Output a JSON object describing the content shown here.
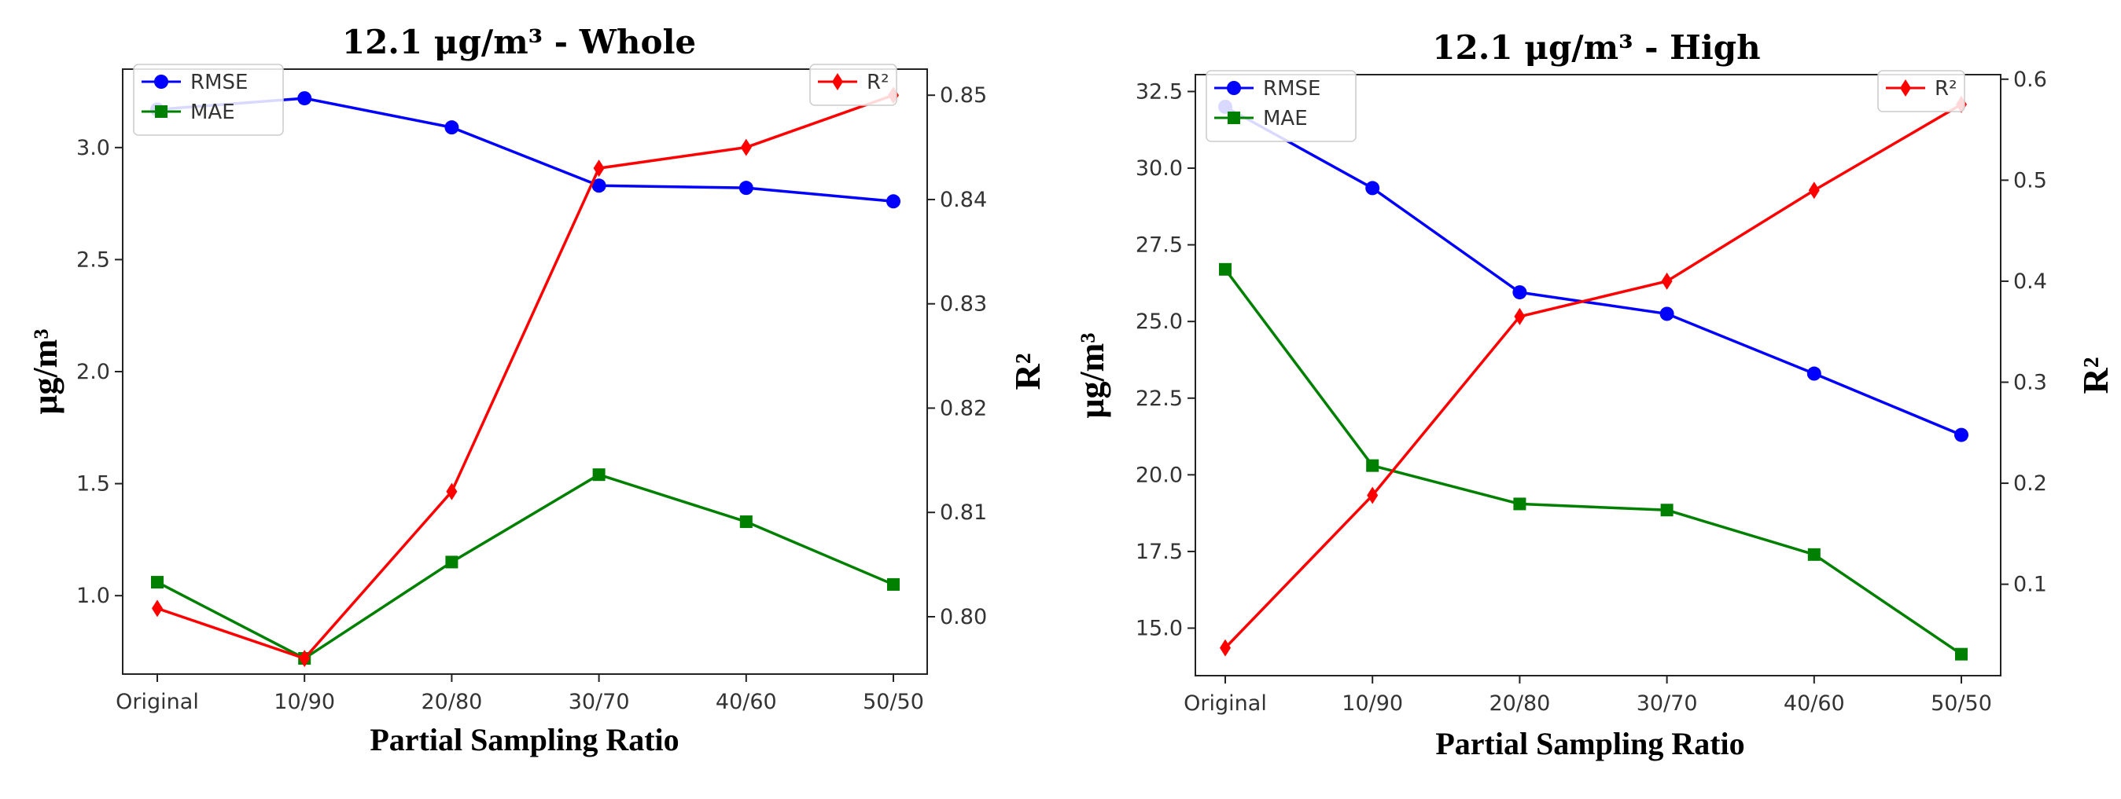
{
  "chart_data": [
    {
      "type": "line",
      "title": "12.1 μg/m³ - Whole",
      "xlabel": "Partial Sampling Ratio",
      "ylabel": "μg/m³",
      "y2label": "R²",
      "categories": [
        "Original",
        "10/90",
        "20/80",
        "30/70",
        "40/60",
        "50/50"
      ],
      "ylim": [
        0.65,
        3.35
      ],
      "y2lim": [
        0.7945,
        0.8525
      ],
      "yticks": [
        "1.0",
        "1.5",
        "2.0",
        "2.5",
        "3.0"
      ],
      "y2ticks": [
        "0.80",
        "0.81",
        "0.82",
        "0.83",
        "0.84",
        "0.85"
      ],
      "series": [
        {
          "name": "RMSE",
          "axis": "left",
          "color": "#0000ff",
          "marker": "circle",
          "values": [
            3.17,
            3.22,
            3.09,
            2.83,
            2.82,
            2.76
          ]
        },
        {
          "name": "MAE",
          "axis": "left",
          "color": "#008000",
          "marker": "square",
          "values": [
            1.06,
            0.72,
            1.15,
            1.54,
            1.33,
            1.05
          ]
        },
        {
          "name": "R²",
          "axis": "right",
          "color": "#ff0000",
          "marker": "diamond",
          "values": [
            0.8008,
            0.796,
            0.812,
            0.843,
            0.845,
            0.85
          ]
        }
      ],
      "legend_left": "top-left",
      "legend_right": "top-right",
      "grid": false
    },
    {
      "type": "line",
      "title": "12.1 μg/m³ - High",
      "xlabel": "Partial Sampling Ratio",
      "ylabel": "μg/m³",
      "y2label": "R²",
      "categories": [
        "Original",
        "10/90",
        "20/80",
        "30/70",
        "40/60",
        "50/50"
      ],
      "ylim": [
        13.45,
        33.05
      ],
      "y2lim": [
        0.0095,
        0.6045
      ],
      "yticks": [
        "15.0",
        "17.5",
        "20.0",
        "22.5",
        "25.0",
        "27.5",
        "30.0",
        "32.5"
      ],
      "y2ticks": [
        "0.1",
        "0.2",
        "0.3",
        "0.4",
        "0.5",
        "0.6"
      ],
      "series": [
        {
          "name": "RMSE",
          "axis": "left",
          "color": "#0000ff",
          "marker": "circle",
          "values": [
            32.0,
            29.35,
            25.95,
            25.25,
            23.3,
            21.3
          ]
        },
        {
          "name": "MAE",
          "axis": "left",
          "color": "#008000",
          "marker": "square",
          "values": [
            26.7,
            20.3,
            19.05,
            18.85,
            17.4,
            14.15
          ]
        },
        {
          "name": "R²",
          "axis": "right",
          "color": "#ff0000",
          "marker": "diamond",
          "values": [
            0.037,
            0.188,
            0.365,
            0.4,
            0.49,
            0.575
          ]
        }
      ],
      "legend_left": "top-left",
      "legend_right": "top-right",
      "grid": false
    }
  ]
}
